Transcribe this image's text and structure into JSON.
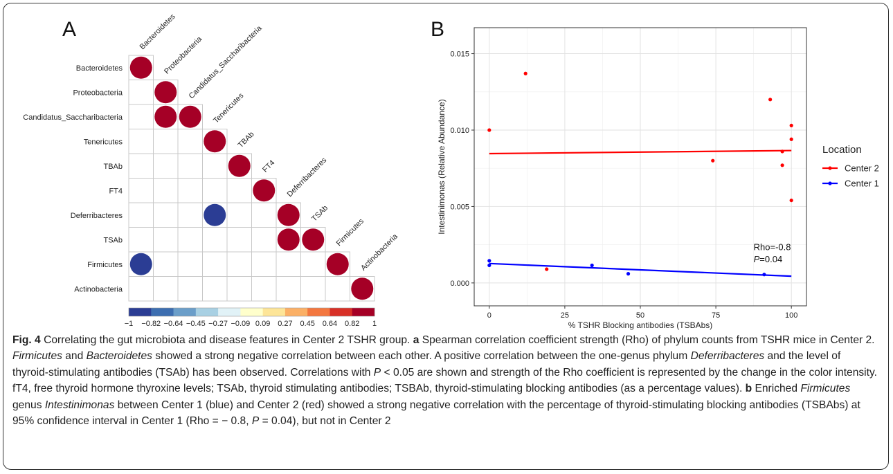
{
  "chart_data": [
    {
      "type": "heatmap",
      "panel_label": "A",
      "title": "",
      "variables": [
        "Bacteroidetes",
        "Proteobacteria",
        "Candidatus_Saccharibacteria",
        "Tenericutes",
        "TBAb",
        "FT4",
        "Deferribacteres",
        "TSAb",
        "Firmicutes",
        "Actinobacteria"
      ],
      "cells": [
        {
          "row": "Bacteroidetes",
          "col": "Bacteroidetes",
          "rho": 1
        },
        {
          "row": "Proteobacteria",
          "col": "Proteobacteria",
          "rho": 1
        },
        {
          "row": "Candidatus_Saccharibacteria",
          "col": "Proteobacteria",
          "rho": 1
        },
        {
          "row": "Candidatus_Saccharibacteria",
          "col": "Candidatus_Saccharibacteria",
          "rho": 1
        },
        {
          "row": "Tenericutes",
          "col": "Tenericutes",
          "rho": 1
        },
        {
          "row": "TBAb",
          "col": "TBAb",
          "rho": 1
        },
        {
          "row": "FT4",
          "col": "FT4",
          "rho": 1
        },
        {
          "row": "Deferribacteres",
          "col": "Tenericutes",
          "rho": -1
        },
        {
          "row": "Deferribacteres",
          "col": "Deferribacteres",
          "rho": 1
        },
        {
          "row": "TSAb",
          "col": "Deferribacteres",
          "rho": 1
        },
        {
          "row": "TSAb",
          "col": "TSAb",
          "rho": 1
        },
        {
          "row": "Firmicutes",
          "col": "Bacteroidetes",
          "rho": -1
        },
        {
          "row": "Firmicutes",
          "col": "Firmicutes",
          "rho": 1
        },
        {
          "row": "Actinobacteria",
          "col": "Actinobacteria",
          "rho": 1
        }
      ],
      "colorbar": {
        "range": [
          -1,
          1
        ],
        "tick_labels": [
          "−1",
          "−0.82",
          "−0.64",
          "−0.45",
          "−0.27",
          "−0.09",
          "0.09",
          "0.27",
          "0.45",
          "0.64",
          "0.82",
          "1"
        ],
        "colors": [
          "#2b3d94",
          "#3d6eb0",
          "#6b9ec9",
          "#a8d0e3",
          "#e1f2f7",
          "#ffffcc",
          "#fde598",
          "#fbb066",
          "#f3773f",
          "#d73027",
          "#a50026"
        ]
      }
    },
    {
      "type": "scatter",
      "panel_label": "B",
      "title": "",
      "xlabel": "% TSHR Blocking antibodies (TSBAbs)",
      "ylabel": "Intestinimonas (Relative Abundance)",
      "xlim": [
        -5,
        105
      ],
      "ylim": [
        -0.0015,
        0.0167
      ],
      "x_ticks": [
        0,
        25,
        50,
        75,
        100
      ],
      "y_ticks": [
        0.0,
        0.005,
        0.01,
        0.015
      ],
      "x_tick_labels": [
        "0",
        "25",
        "50",
        "75",
        "100"
      ],
      "y_tick_labels": [
        "0.000",
        "0.005",
        "0.010",
        "0.015"
      ],
      "grid": true,
      "legend": {
        "title": "Location",
        "position": "right"
      },
      "series": [
        {
          "name": "Center 2",
          "color": "#ff0000",
          "points": [
            [
              0,
              0.01
            ],
            [
              12,
              0.0137
            ],
            [
              19,
              0.0009
            ],
            [
              74,
              0.008
            ],
            [
              93,
              0.012
            ],
            [
              97,
              0.0086
            ],
            [
              97,
              0.0077
            ],
            [
              100,
              0.0103
            ],
            [
              100,
              0.0094
            ],
            [
              100,
              0.0054
            ]
          ],
          "trend": [
            [
              0,
              0.00846
            ],
            [
              100,
              0.00866
            ]
          ]
        },
        {
          "name": "Center 1",
          "color": "#0000ff",
          "points": [
            [
              0,
              0.00145
            ],
            [
              0,
              0.00115
            ],
            [
              34,
              0.00115
            ],
            [
              46,
              0.0006
            ],
            [
              91,
              0.00055
            ]
          ],
          "trend": [
            [
              0,
              0.00127
            ],
            [
              100,
              0.00044
            ]
          ]
        }
      ],
      "annotation": {
        "rho": "Rho=-0.8",
        "p_italic": "P",
        "p_rest": "=0.04"
      }
    }
  ],
  "caption": {
    "fig_label": "Fig. 4",
    "segments": [
      {
        "t": " Correlating the gut microbiota and disease features in Center 2 TSHR group. "
      },
      {
        "t": "a",
        "b": true
      },
      {
        "t": " Spearman correlation coefficient strength (Rho) of phylum counts from TSHR mice in Center 2. "
      },
      {
        "t": "Firmicutes",
        "i": true
      },
      {
        "t": " and "
      },
      {
        "t": "Bacteroidetes",
        "i": true
      },
      {
        "t": " showed a strong negative correlation between each other. A positive correlation between the one-genus phylum "
      },
      {
        "t": "Deferribacteres",
        "i": true
      },
      {
        "t": " and the level of thyroid-stimulating antibodies (TSAb) has been observed. Correlations with "
      },
      {
        "t": "P",
        "i": true
      },
      {
        "t": " < 0.05 are shown and strength of the Rho coefficient is represented by the change in the color intensity. fT4, free thyroid hormone thyroxine levels; TSAb, thyroid stimulating antibodies; TSBAb, thyroid-stimulating blocking antibodies (as a percentage values). "
      },
      {
        "t": "b",
        "b": true
      },
      {
        "t": " Enriched "
      },
      {
        "t": "Firmicutes",
        "i": true
      },
      {
        "t": " genus "
      },
      {
        "t": "Intestinimonas",
        "i": true
      },
      {
        "t": " between Center 1 (blue) and Center 2 (red) showed a strong negative correlation with the percentage of thyroid-stimulating blocking antibodies (TSBAbs) at 95% confidence interval in Center 1 (Rho = − 0.8, "
      },
      {
        "t": "P",
        "i": true
      },
      {
        "t": " = 0.04), but not in Center 2"
      }
    ]
  }
}
